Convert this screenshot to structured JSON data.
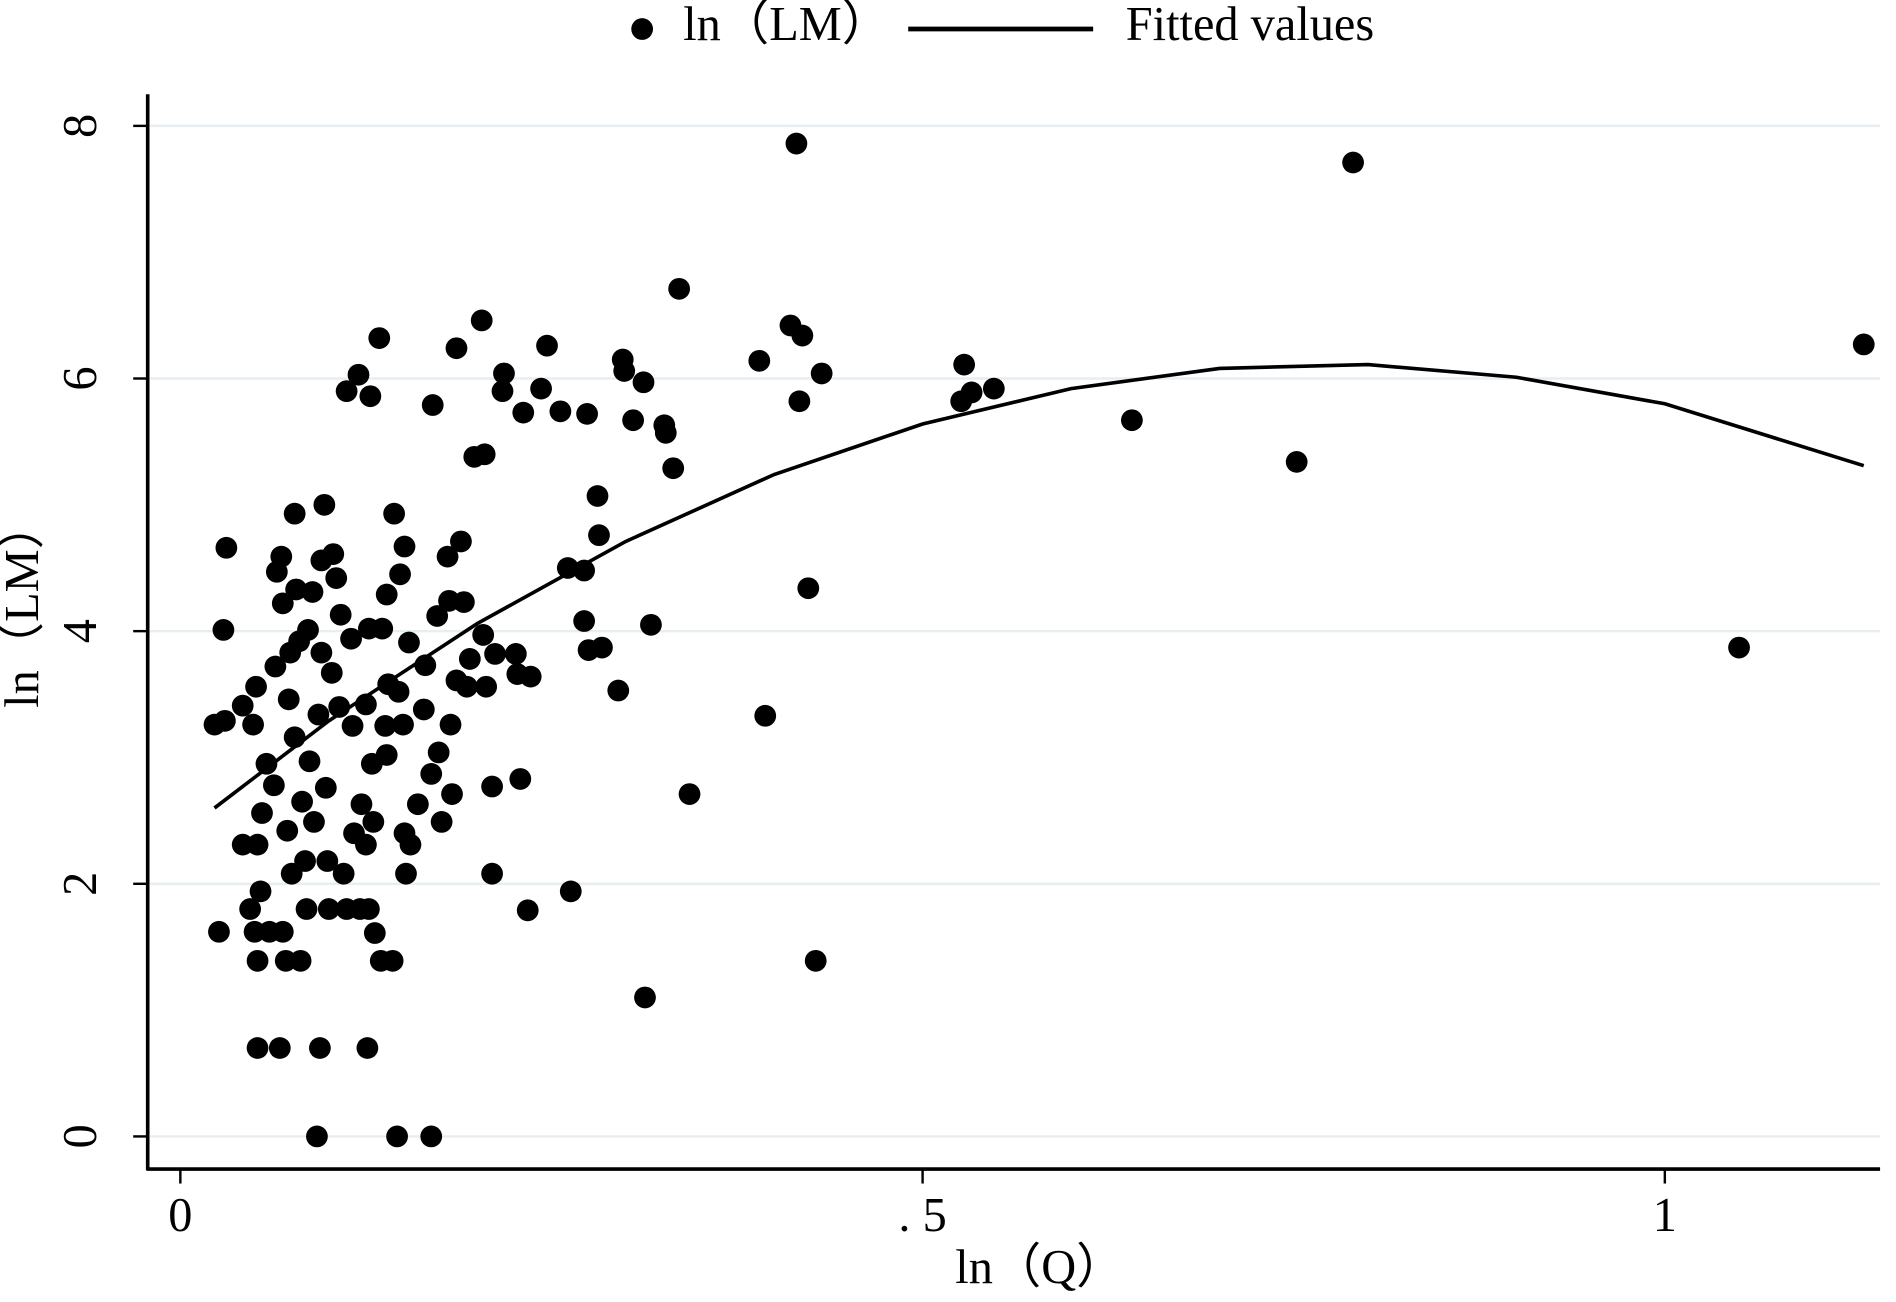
{
  "chart_data": {
    "type": "scatter",
    "xlabel": "ln（Q）",
    "ylabel": "ln（LM）",
    "xlim": [
      -0.022,
      1.145
    ],
    "ylim": [
      -0.258,
      8.25
    ],
    "xticks": [
      0,
      {
        "value": 0.5,
        "label": ". 5"
      },
      1
    ],
    "yticks": [
      0,
      2,
      4,
      6,
      8
    ],
    "grid": true,
    "legend": "top",
    "series": [
      {
        "name": "ln（LM）",
        "type": "scatter",
        "color": "#000000",
        "x": [
          0.023,
          0.026,
          0.029,
          0.031,
          0.03,
          0.042,
          0.042,
          0.047,
          0.049,
          0.051,
          0.052,
          0.05,
          0.052,
          0.052,
          0.054,
          0.055,
          0.058,
          0.06,
          0.063,
          0.064,
          0.065,
          0.067,
          0.068,
          0.069,
          0.069,
          0.071,
          0.072,
          0.073,
          0.074,
          0.075,
          0.077,
          0.077,
          0.078,
          0.08,
          0.081,
          0.082,
          0.084,
          0.085,
          0.086,
          0.087,
          0.089,
          0.09,
          0.092,
          0.093,
          0.094,
          0.095,
          0.095,
          0.097,
          0.098,
          0.099,
          0.1,
          0.102,
          0.103,
          0.105,
          0.107,
          0.108,
          0.11,
          0.112,
          0.112,
          0.115,
          0.116,
          0.117,
          0.12,
          0.121,
          0.122,
          0.125,
          0.125,
          0.126,
          0.127,
          0.128,
          0.127,
          0.129,
          0.13,
          0.131,
          0.134,
          0.135,
          0.136,
          0.138,
          0.139,
          0.139,
          0.14,
          0.143,
          0.144,
          0.146,
          0.147,
          0.148,
          0.15,
          0.151,
          0.151,
          0.152,
          0.154,
          0.155,
          0.16,
          0.164,
          0.165,
          0.169,
          0.17,
          0.169,
          0.173,
          0.174,
          0.176,
          0.18,
          0.181,
          0.182,
          0.183,
          0.186,
          0.186,
          0.189,
          0.191,
          0.193,
          0.195,
          0.198,
          0.203,
          0.204,
          0.205,
          0.206,
          0.21,
          0.21,
          0.212,
          0.217,
          0.218,
          0.226,
          0.227,
          0.229,
          0.231,
          0.234,
          0.236,
          0.243,
          0.247,
          0.256,
          0.261,
          0.263,
          0.272,
          0.272,
          0.274,
          0.275,
          0.281,
          0.282,
          0.284,
          0.295,
          0.298,
          0.299,
          0.305,
          0.312,
          0.313,
          0.317,
          0.326,
          0.327,
          0.332,
          0.336,
          0.343,
          0.39,
          0.394,
          0.411,
          0.415,
          0.417,
          0.419,
          0.423,
          0.428,
          0.432,
          0.526,
          0.528,
          0.533,
          0.548,
          0.641,
          0.752,
          0.79,
          1.05,
          1.134
        ],
        "values": [
          3.26,
          1.62,
          4.01,
          4.66,
          3.29,
          3.41,
          2.31,
          1.8,
          3.26,
          3.56,
          2.31,
          1.62,
          1.39,
          0.7,
          1.94,
          2.56,
          2.95,
          1.62,
          2.78,
          3.72,
          4.47,
          0.7,
          4.59,
          1.62,
          4.22,
          1.39,
          2.42,
          3.46,
          3.83,
          2.08,
          4.93,
          3.16,
          4.33,
          3.92,
          1.39,
          2.65,
          2.18,
          1.8,
          4.01,
          2.97,
          4.31,
          2.49,
          0.0,
          3.34,
          0.7,
          3.83,
          4.56,
          5.0,
          2.76,
          2.18,
          1.8,
          3.67,
          4.61,
          4.42,
          3.4,
          4.13,
          2.08,
          1.8,
          5.9,
          3.94,
          3.25,
          2.4,
          6.03,
          1.8,
          2.63,
          3.42,
          2.31,
          0.7,
          1.8,
          5.86,
          4.02,
          2.95,
          2.49,
          1.61,
          6.32,
          1.39,
          4.02,
          3.25,
          4.29,
          3.02,
          3.58,
          1.39,
          4.93,
          0.0,
          3.52,
          4.45,
          3.26,
          2.4,
          4.67,
          2.08,
          3.91,
          2.31,
          2.63,
          3.38,
          3.73,
          2.87,
          5.79,
          0.0,
          4.12,
          3.04,
          2.49,
          4.59,
          4.24,
          3.26,
          2.71,
          6.24,
          3.61,
          4.71,
          4.23,
          3.56,
          3.78,
          5.38,
          6.46,
          3.97,
          5.4,
          3.56,
          2.77,
          2.08,
          3.82,
          5.9,
          6.04,
          3.82,
          3.66,
          2.83,
          5.73,
          1.79,
          3.64,
          5.92,
          6.26,
          5.74,
          4.5,
          1.94,
          4.08,
          4.48,
          5.72,
          3.85,
          5.07,
          4.76,
          3.87,
          3.53,
          6.15,
          6.06,
          5.67,
          5.97,
          1.1,
          4.05,
          5.63,
          5.57,
          5.29,
          6.71,
          2.71,
          6.14,
          3.33,
          6.42,
          7.86,
          5.82,
          6.34,
          4.34,
          1.39,
          6.04,
          5.82,
          6.11,
          5.89,
          5.92,
          5.67,
          5.34,
          7.71,
          3.87,
          6.27
        ]
      },
      {
        "name": "Fitted values",
        "type": "line",
        "color": "#000000",
        "x": [
          0.023,
          0.1,
          0.2,
          0.3,
          0.4,
          0.5,
          0.6,
          0.7,
          0.8,
          0.9,
          1.0,
          1.134
        ],
        "values": [
          2.6,
          3.29,
          4.06,
          4.71,
          5.24,
          5.64,
          5.92,
          6.08,
          6.11,
          6.01,
          5.8,
          5.31
        ]
      }
    ]
  }
}
